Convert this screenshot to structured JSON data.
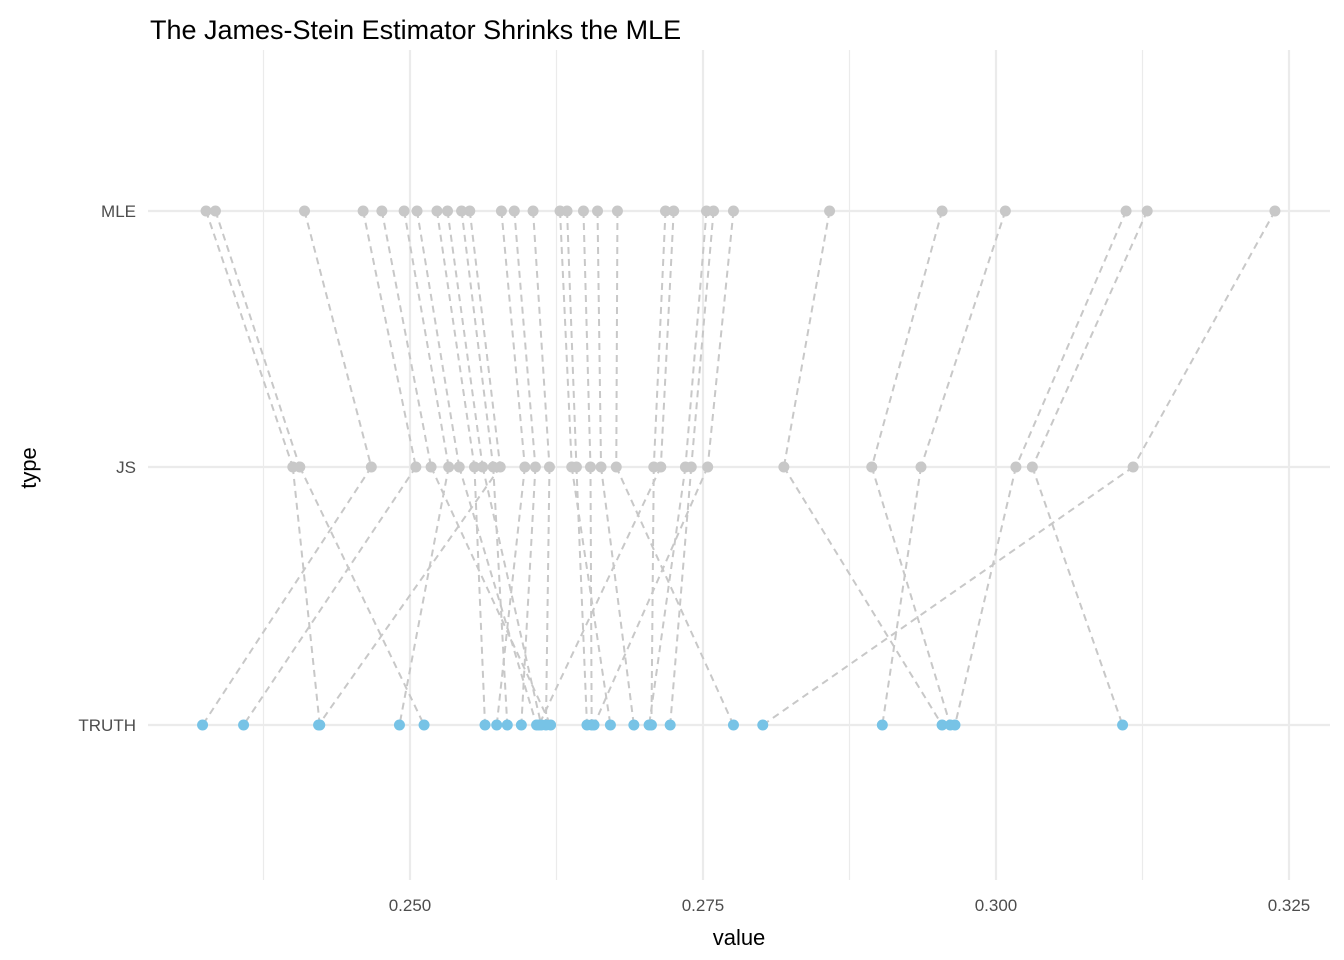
{
  "chart_data": {
    "type": "scatter",
    "title": "The James-Stein Estimator Shrinks the MLE",
    "xlabel": "value",
    "ylabel": "type",
    "xlim": [
      0.2293,
      0.3265
    ],
    "x_ticks": [
      "0.250",
      "0.275",
      "0.300",
      "0.325"
    ],
    "x_tick_values": [
      0.25,
      0.275,
      0.3,
      0.325
    ],
    "categories": [
      "MLE",
      "JS",
      "TRUTH"
    ],
    "grid": true,
    "legend": "none",
    "colors": {
      "MLE": "#c8c8c8",
      "JS": "#c8c8c8",
      "TRUTH": "#77c3e6",
      "connector": "#c8c8c8"
    },
    "series": [
      {
        "category": "MLE",
        "values": [
          0.2326,
          0.2334,
          0.241,
          0.246,
          0.2476,
          0.2495,
          0.2506,
          0.2523,
          0.2532,
          0.2544,
          0.2551,
          0.2578,
          0.2589,
          0.2605,
          0.2628,
          0.2634,
          0.2648,
          0.266,
          0.2677,
          0.2718,
          0.2725,
          0.2753,
          0.2759,
          0.2776,
          0.2858,
          0.2954,
          0.3008,
          0.3111,
          0.3129,
          0.3238
        ]
      },
      {
        "category": "JS",
        "values": [
          0.24,
          0.2406,
          0.2467,
          0.2505,
          0.2518,
          0.2533,
          0.2542,
          0.2555,
          0.2562,
          0.2571,
          0.2577,
          0.2598,
          0.2607,
          0.2619,
          0.2638,
          0.2642,
          0.2654,
          0.2663,
          0.2676,
          0.2708,
          0.2714,
          0.2735,
          0.274,
          0.2754,
          0.2819,
          0.2894,
          0.2936,
          0.3017,
          0.3031,
          0.3117
        ]
      },
      {
        "category": "TRUTH",
        "values": [
          0.2423,
          0.2512,
          0.2323,
          0.2358,
          0.262,
          0.2491,
          0.2608,
          0.2564,
          0.2612,
          0.2583,
          0.2422,
          0.2574,
          0.2595,
          0.2616,
          0.2671,
          0.2651,
          0.2655,
          0.2691,
          0.2776,
          0.2706,
          0.261,
          0.2704,
          0.2722,
          0.2657,
          0.2954,
          0.2961,
          0.2903,
          0.2965,
          0.3108,
          0.2801
        ]
      }
    ]
  }
}
